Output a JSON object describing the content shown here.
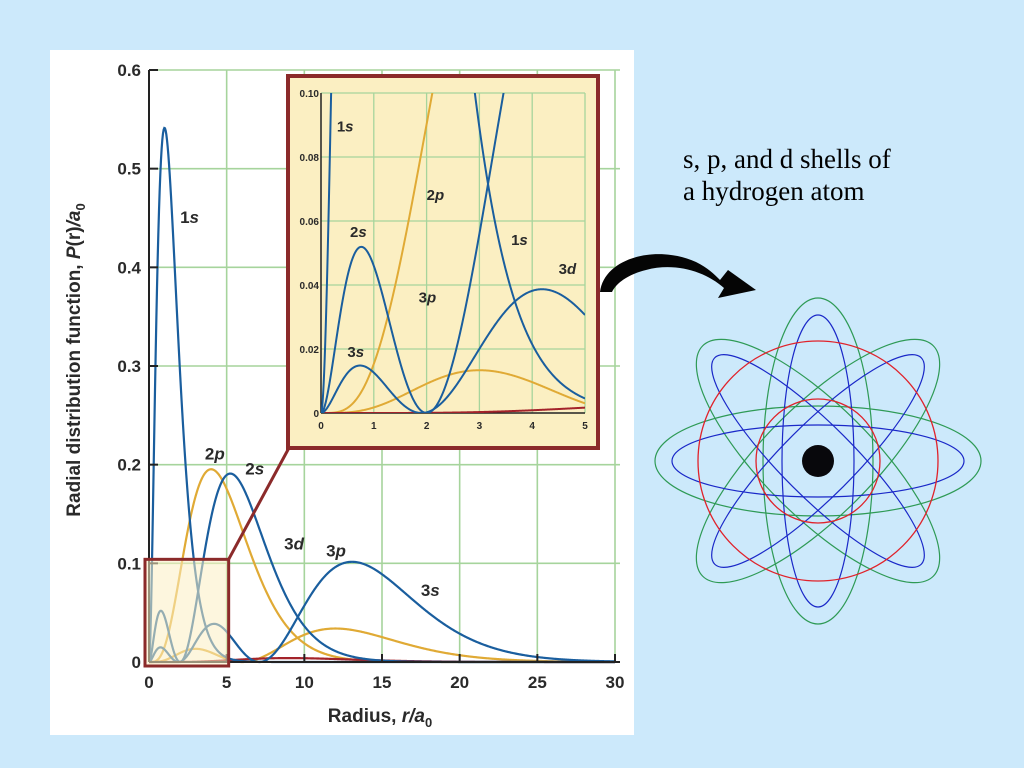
{
  "caption": {
    "line1": "s, p, and d shells of",
    "line2": "a hydrogen atom"
  },
  "colors": {
    "s": "#1a5e9e",
    "p": "#e0aa35",
    "d": "#a3232a",
    "grid": "#a6d49c",
    "inset_fill": "#fbefc2",
    "inset_border": "#8b2a2a",
    "orbit_green": "#2e9a55",
    "orbit_blue": "#1a28c8",
    "orbit_red": "#e0222a"
  },
  "chart_data": [
    {
      "type": "line",
      "ylabel_main": "Radial distribution function, ",
      "ylabel_func": "P",
      "ylabel_arg": "(r)",
      "ylabel_unit": "/a",
      "ylabel_sub": "0",
      "xlabel_main": "Radius, ",
      "xlabel_var": "r",
      "xlabel_unit": "/a",
      "xlabel_sub": "0",
      "xlim": [
        0,
        30
      ],
      "ylim": [
        0,
        0.6
      ],
      "x_ticks": [
        "0",
        "5",
        "10",
        "15",
        "20",
        "25",
        "30"
      ],
      "y_ticks": [
        "0",
        "0.1",
        "0.2",
        "0.3",
        "0.4",
        "0.5",
        "0.6"
      ],
      "grid": true,
      "series_labels": [
        {
          "name": "1",
          "orbital": "s",
          "x": 2.0,
          "y": 0.445
        },
        {
          "name": "2",
          "orbital": "p",
          "x": 3.6,
          "y": 0.205
        },
        {
          "name": "2",
          "orbital": "s",
          "x": 6.2,
          "y": 0.19
        },
        {
          "name": "3",
          "orbital": "d",
          "x": 8.7,
          "y": 0.114
        },
        {
          "name": "3",
          "orbital": "p",
          "x": 11.4,
          "y": 0.107
        },
        {
          "name": "3",
          "orbital": "s",
          "x": 17.5,
          "y": 0.067
        }
      ]
    },
    {
      "type": "line",
      "panel": "inset",
      "xlim": [
        0,
        5
      ],
      "ylim": [
        0,
        0.1
      ],
      "x_ticks": [
        "0",
        "1",
        "2",
        "3",
        "4",
        "5"
      ],
      "y_ticks": [
        "0",
        "0.02",
        "0.04",
        "0.06",
        "0.08",
        "0.10"
      ],
      "grid": true,
      "series_labels": [
        {
          "name": "1",
          "orbital": "s",
          "x": 0.3,
          "y": 0.088
        },
        {
          "name": "2",
          "orbital": "p",
          "x": 2.0,
          "y": 0.0665
        },
        {
          "name": "2",
          "orbital": "s",
          "x": 0.55,
          "y": 0.055
        },
        {
          "name": "1",
          "orbital": "s",
          "x": 3.6,
          "y": 0.0525
        },
        {
          "name": "3",
          "orbital": "d",
          "x": 4.5,
          "y": 0.0435
        },
        {
          "name": "3",
          "orbital": "p",
          "x": 1.85,
          "y": 0.0345
        },
        {
          "name": "3",
          "orbital": "s",
          "x": 0.5,
          "y": 0.0175
        }
      ]
    }
  ]
}
